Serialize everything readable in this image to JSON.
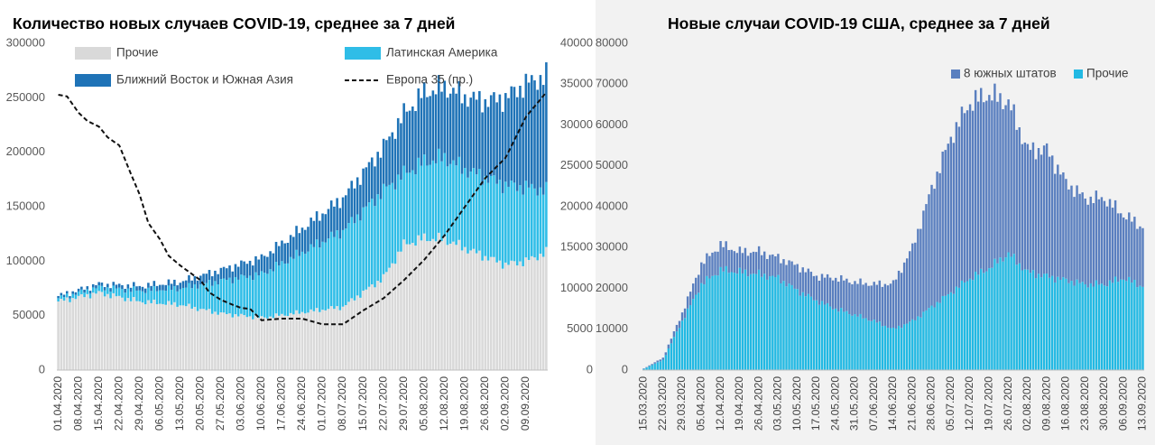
{
  "colors": {
    "other": "#d9d9d9",
    "latam": "#2fbde7",
    "mesa": "#1f73b7",
    "europe": "#111111",
    "us_south": "#5a7fbf",
    "us_other": "#22b9e3"
  },
  "chart_data": [
    {
      "type": "bar",
      "stacked": true,
      "title": "Количество новых случаев COVID-19, среднее за 7 дней",
      "y_left_ticks": [
        "0",
        "50000",
        "100000",
        "150000",
        "200000",
        "250000",
        "300000"
      ],
      "y_right_ticks": [
        "0",
        "5000",
        "10000",
        "15000",
        "20000",
        "25000",
        "30000",
        "35000",
        "40000"
      ],
      "ylim_left": [
        0,
        300000
      ],
      "ylim_right": [
        0,
        40000
      ],
      "x_tick_labels": [
        "01.04.2020",
        "08.04.2020",
        "15.04.2020",
        "22.04.2020",
        "29.04.2020",
        "06.05.2020",
        "13.05.2020",
        "20.05.2020",
        "27.05.2020",
        "03.06.2020",
        "10.06.2020",
        "17.06.2020",
        "24.06.2020",
        "01.07.2020",
        "08.07.2020",
        "15.07.2020",
        "22.07.2020",
        "29.07.2020",
        "05.08.2020",
        "12.08.2020",
        "19.08.2020",
        "26.08.2020",
        "02.09.2020",
        "09.09.2020"
      ],
      "legend": [
        {
          "key": "other",
          "label": "Прочие",
          "kind": "box"
        },
        {
          "key": "latam",
          "label": "Латинская Америка",
          "kind": "box"
        },
        {
          "key": "mesa",
          "label": "Ближний Восток и Южная Азия",
          "kind": "box"
        },
        {
          "key": "europe",
          "label": "Европа 35 (пр.)",
          "kind": "dash"
        }
      ],
      "series": [
        {
          "key": "other",
          "name": "Прочие",
          "x": [
            0,
            14,
            28,
            42,
            56,
            70,
            84,
            98,
            112,
            119,
            126,
            133,
            140,
            147,
            154,
            161,
            168
          ],
          "values": [
            63000,
            71000,
            63000,
            60000,
            52000,
            48000,
            53000,
            58000,
            85000,
            115000,
            121000,
            120000,
            112000,
            104000,
            97000,
            100000,
            108000
          ]
        },
        {
          "key": "latam",
          "name": "Латинская Америка",
          "x": [
            0,
            14,
            28,
            42,
            56,
            70,
            84,
            98,
            112,
            119,
            126,
            133,
            140,
            147,
            154,
            161,
            168
          ],
          "values": [
            3000,
            5000,
            10000,
            15000,
            30000,
            40000,
            55000,
            70000,
            80000,
            65000,
            70000,
            75000,
            72000,
            73000,
            73000,
            68000,
            57000
          ]
        },
        {
          "key": "mesa",
          "name": "Ближний Восток и Южная Азия",
          "x": [
            0,
            14,
            28,
            42,
            56,
            70,
            84,
            98,
            112,
            119,
            126,
            133,
            140,
            147,
            154,
            161,
            168
          ],
          "values": [
            2000,
            3000,
            4000,
            6000,
            10000,
            15000,
            22000,
            30000,
            40000,
            55000,
            64000,
            65000,
            67000,
            70000,
            80000,
            95000,
            105000
          ]
        },
        {
          "key": "europe",
          "name": "Европа 35 (пр.)",
          "axis": "right",
          "x": [
            0,
            3,
            7,
            10,
            14,
            17,
            21,
            25,
            28,
            31,
            35,
            38,
            42,
            47,
            49,
            52,
            56,
            60,
            63,
            66,
            70,
            77,
            84,
            91,
            98,
            105,
            112,
            119,
            126,
            133,
            140,
            147,
            154,
            161,
            168
          ],
          "values": [
            33700,
            33500,
            31500,
            30500,
            29800,
            28500,
            27500,
            24000,
            21500,
            18000,
            16000,
            14000,
            12800,
            11500,
            11000,
            9500,
            8600,
            8000,
            7600,
            7500,
            6100,
            6300,
            6300,
            5600,
            5600,
            7300,
            8800,
            11000,
            13500,
            16500,
            20000,
            23500,
            26000,
            31000,
            34000
          ]
        }
      ]
    },
    {
      "type": "bar",
      "stacked": true,
      "title": "Новые случаи COVID-19  США, среднее за 7 дней",
      "y_ticks": [
        "0",
        "10000",
        "20000",
        "30000",
        "40000",
        "50000",
        "60000",
        "70000",
        "80000"
      ],
      "ylim": [
        0,
        80000
      ],
      "x_tick_labels": [
        "15.03.2020",
        "22.03.2020",
        "29.03.2020",
        "05.04.2020",
        "12.04.2020",
        "19.04.2020",
        "26.04.2020",
        "03.05.2020",
        "10.05.2020",
        "17.05.2020",
        "24.05.2020",
        "31.05.2020",
        "07.06.2020",
        "14.06.2020",
        "21.06.2020",
        "28.06.2020",
        "05.07.2020",
        "12.07.2020",
        "19.07.2020",
        "26.07.2020",
        "02.08.2020",
        "09.08.2020",
        "16.08.2020",
        "23.08.2020",
        "30.08.2020",
        "06.09.2020",
        "13.09.2020"
      ],
      "legend": [
        {
          "key": "us_south",
          "label": "8 южных штатов",
          "kind": "box"
        },
        {
          "key": "us_other",
          "label": "Прочие",
          "kind": "box"
        }
      ],
      "series": [
        {
          "key": "us_other",
          "name": "Прочие",
          "x": [
            0,
            7,
            14,
            21,
            28,
            35,
            42,
            49,
            56,
            63,
            70,
            77,
            84,
            91,
            98,
            105,
            112,
            119,
            126,
            133,
            140,
            147,
            154,
            161,
            168,
            175,
            182
          ],
          "values": [
            300,
            2500,
            12000,
            21000,
            24500,
            24000,
            23500,
            22500,
            19500,
            17000,
            15000,
            13500,
            12000,
            10000,
            12000,
            15500,
            19000,
            22500,
            25000,
            28500,
            24000,
            23000,
            22000,
            21000,
            21000,
            22500,
            20500
          ]
        },
        {
          "key": "us_south",
          "name": "8 южных штатов",
          "x": [
            0,
            7,
            14,
            21,
            28,
            35,
            42,
            49,
            56,
            63,
            70,
            77,
            84,
            91,
            98,
            105,
            112,
            119,
            126,
            133,
            140,
            147,
            154,
            161,
            168,
            175,
            182
          ],
          "values": [
            100,
            500,
            2000,
            5000,
            6200,
            5000,
            5500,
            5000,
            6000,
            6000,
            7500,
            8000,
            9000,
            11200,
            18000,
            29000,
            38000,
            43000,
            42500,
            37000,
            30000,
            31000,
            24000,
            21000,
            21000,
            15500,
            14500
          ]
        }
      ]
    }
  ]
}
